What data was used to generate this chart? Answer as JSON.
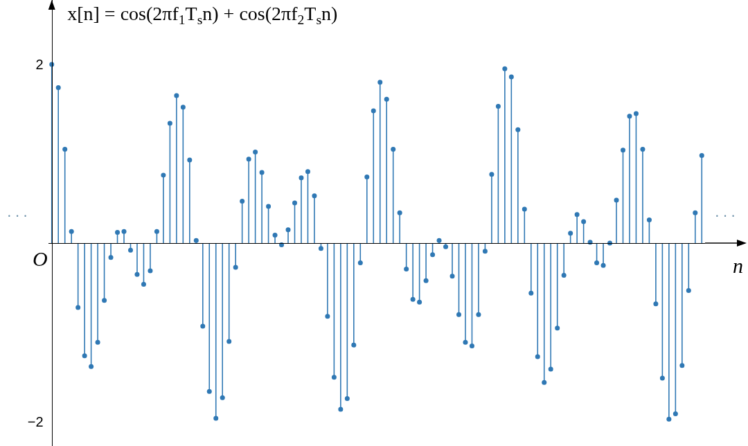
{
  "chart_data": {
    "type": "lollipop",
    "title": "x[n] = cos(2πf$_{1}$T$_{s}$n) + cos(2πf$_{2}$T$_{s}$n)",
    "xlabel": "n",
    "annotations": [
      "O",
      "· · ·",
      "· · ·"
    ],
    "categories": [
      null,
      null,
      null,
      null,
      null,
      null,
      null,
      null,
      null,
      null,
      null,
      null,
      null,
      null,
      null,
      null,
      null,
      null,
      null,
      null,
      null,
      null,
      null,
      null,
      null,
      null,
      null,
      null,
      null,
      null,
      null,
      null,
      null,
      null,
      null,
      null,
      null,
      null,
      null,
      null,
      null,
      null,
      null,
      null,
      null,
      null,
      null,
      null,
      null,
      null,
      null,
      null,
      null,
      null,
      null,
      null,
      null,
      null,
      null,
      null,
      null,
      null,
      null,
      null,
      null,
      null,
      null,
      null,
      null,
      null,
      null,
      null,
      null,
      null,
      null,
      null,
      null,
      null,
      null,
      null,
      null,
      null,
      null,
      null,
      null,
      null,
      null,
      null,
      null,
      null,
      null,
      null,
      null,
      null,
      null,
      null,
      null,
      null,
      null,
      null
    ],
    "series": [
      {
        "color": "#2f78b4",
        "values": [
          2.0,
          1.74,
          1.05,
          0.13,
          -0.72,
          -1.26,
          -1.38,
          -1.11,
          -0.64,
          -0.16,
          0.12,
          0.13,
          -0.08,
          -0.35,
          -0.46,
          -0.31,
          0.13,
          0.76,
          1.34,
          1.65,
          1.52,
          0.93,
          0.03,
          -0.93,
          -1.66,
          -1.96,
          -1.73,
          -1.1,
          -0.27,
          0.47,
          0.94,
          1.02,
          0.79,
          0.41,
          0.09,
          -0.02,
          0.15,
          0.45,
          0.73,
          0.8,
          0.53,
          -0.06,
          -0.82,
          -1.5,
          -1.86,
          -1.74,
          -1.14,
          -0.22,
          0.74,
          1.48,
          1.8,
          1.61,
          1.05,
          0.34,
          -0.29,
          -0.63,
          -0.66,
          -0.42,
          -0.13,
          0.03,
          -0.04,
          -0.37,
          -0.8,
          -1.11,
          -1.15,
          -0.8,
          -0.09,
          0.77,
          1.53,
          1.95,
          1.86,
          1.27,
          0.38,
          -0.56,
          -1.27,
          -1.56,
          -1.41,
          -0.95,
          -0.36,
          0.11,
          0.32,
          0.24,
          0.01,
          -0.22,
          -0.25,
          0.0,
          0.48,
          1.04,
          1.42,
          1.45,
          1.05,
          0.26,
          -0.68,
          -1.51,
          -1.97,
          -1.91,
          -1.37,
          -0.53,
          0.34,
          0.98
        ]
      }
    ],
    "ylim": [
      -2.27,
      2.72
    ],
    "yticks": [
      {
        "value": -2,
        "label": "−2"
      },
      {
        "value": 2,
        "label": "2"
      }
    ],
    "tick_labels": "y",
    "marker": "circle",
    "grid": false
  }
}
